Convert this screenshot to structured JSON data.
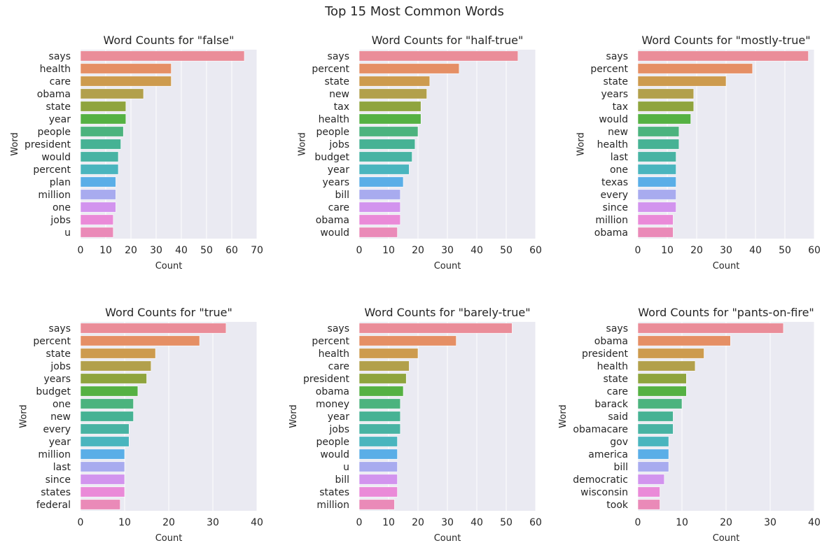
{
  "suptitle": "Top 15 Most Common Words",
  "palette": [
    "#ea8d99",
    "#e58f65",
    "#cd9b4e",
    "#b2a04b",
    "#8fa43e",
    "#55b143",
    "#4cb37e",
    "#46b294",
    "#48b3a3",
    "#4ab5be",
    "#5aaee7",
    "#a8abef",
    "#d294ee",
    "#ea8ad8",
    "#ea8ab8"
  ],
  "chart_data": [
    {
      "type": "bar",
      "orientation": "horizontal",
      "title": "Word Counts for \"false\"",
      "xlabel": "Count",
      "ylabel": "Word",
      "categories": [
        "says",
        "health",
        "care",
        "obama",
        "state",
        "year",
        "people",
        "president",
        "would",
        "percent",
        "plan",
        "million",
        "one",
        "jobs",
        "u"
      ],
      "values": [
        65,
        36,
        36,
        25,
        18,
        18,
        17,
        16,
        15,
        15,
        14,
        14,
        14,
        13,
        13
      ],
      "xlim": [
        0,
        70
      ],
      "xticks": [
        0,
        10,
        20,
        30,
        40,
        50,
        60,
        70
      ],
      "grid": true
    },
    {
      "type": "bar",
      "orientation": "horizontal",
      "title": "Word Counts for \"half-true\"",
      "xlabel": "Count",
      "ylabel": "Word",
      "categories": [
        "says",
        "percent",
        "state",
        "new",
        "tax",
        "health",
        "people",
        "jobs",
        "budget",
        "year",
        "years",
        "bill",
        "care",
        "obama",
        "would"
      ],
      "values": [
        54,
        34,
        24,
        23,
        21,
        21,
        20,
        19,
        18,
        17,
        15,
        14,
        14,
        14,
        13
      ],
      "xlim": [
        0,
        60
      ],
      "xticks": [
        0,
        10,
        20,
        30,
        40,
        50,
        60
      ],
      "grid": true
    },
    {
      "type": "bar",
      "orientation": "horizontal",
      "title": "Word Counts for \"mostly-true\"",
      "xlabel": "Count",
      "ylabel": "Word",
      "categories": [
        "says",
        "percent",
        "state",
        "years",
        "tax",
        "would",
        "new",
        "health",
        "last",
        "one",
        "texas",
        "every",
        "since",
        "million",
        "obama"
      ],
      "values": [
        58,
        39,
        30,
        19,
        19,
        18,
        14,
        14,
        13,
        13,
        13,
        13,
        13,
        12,
        12
      ],
      "xlim": [
        0,
        60
      ],
      "xticks": [
        0,
        10,
        20,
        30,
        40,
        50,
        60
      ],
      "grid": true
    },
    {
      "type": "bar",
      "orientation": "horizontal",
      "title": "Word Counts for \"true\"",
      "xlabel": "Count",
      "ylabel": "Word",
      "categories": [
        "says",
        "percent",
        "state",
        "jobs",
        "years",
        "budget",
        "one",
        "new",
        "every",
        "year",
        "million",
        "last",
        "since",
        "states",
        "federal"
      ],
      "values": [
        33,
        27,
        17,
        16,
        15,
        13,
        12,
        12,
        11,
        11,
        10,
        10,
        10,
        10,
        9
      ],
      "xlim": [
        0,
        40
      ],
      "xticks": [
        0,
        10,
        20,
        30,
        40
      ],
      "grid": true
    },
    {
      "type": "bar",
      "orientation": "horizontal",
      "title": "Word Counts for \"barely-true\"",
      "xlabel": "Count",
      "ylabel": "Word",
      "categories": [
        "says",
        "percent",
        "health",
        "care",
        "president",
        "obama",
        "money",
        "year",
        "jobs",
        "people",
        "would",
        "u",
        "bill",
        "states",
        "million"
      ],
      "values": [
        52,
        33,
        20,
        17,
        16,
        15,
        14,
        14,
        14,
        13,
        13,
        13,
        13,
        13,
        12
      ],
      "xlim": [
        0,
        60
      ],
      "xticks": [
        0,
        10,
        20,
        30,
        40,
        50,
        60
      ],
      "grid": true
    },
    {
      "type": "bar",
      "orientation": "horizontal",
      "title": "Word Counts for \"pants-on-fire\"",
      "xlabel": "Count",
      "ylabel": "Word",
      "categories": [
        "says",
        "obama",
        "president",
        "health",
        "state",
        "care",
        "barack",
        "said",
        "obamacare",
        "gov",
        "america",
        "bill",
        "democratic",
        "wisconsin",
        "took"
      ],
      "values": [
        33,
        21,
        15,
        13,
        11,
        11,
        10,
        8,
        8,
        7,
        7,
        7,
        6,
        5,
        5
      ],
      "xlim": [
        0,
        40
      ],
      "xticks": [
        0,
        10,
        20,
        30,
        40
      ],
      "grid": true
    }
  ]
}
